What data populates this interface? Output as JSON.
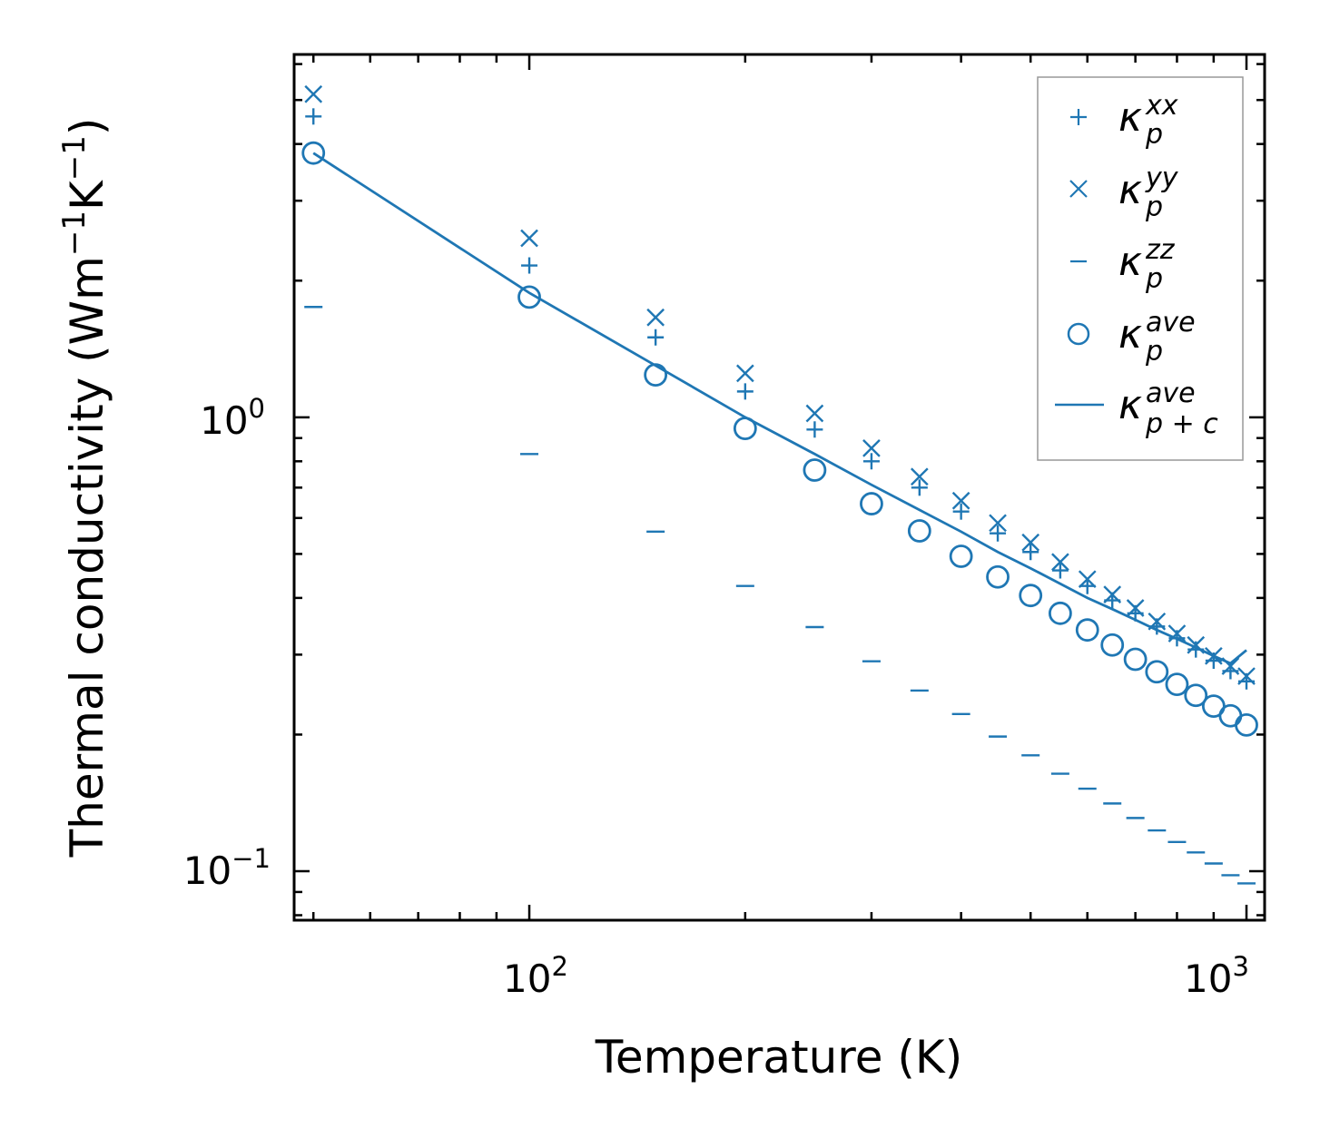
{
  "chart_data": {
    "type": "scatter",
    "x_scale": "log",
    "y_scale": "log",
    "xlabel": "Temperature (K)",
    "ylabel": {
      "prefix": "Thermal conductivity (Wm",
      "exp1": "−1",
      "middle": "K",
      "exp2": "−1",
      "suffix": ")"
    },
    "xlim": [
      47,
      1060
    ],
    "ylim": [
      0.078,
      6.3
    ],
    "x_ticks": [
      {
        "value": 100,
        "base": "10",
        "exp": "2"
      },
      {
        "value": 1000,
        "base": "10",
        "exp": "3"
      }
    ],
    "y_ticks": [
      {
        "value": 1,
        "base": "10",
        "exp": "0"
      },
      {
        "value": 0.1,
        "base": "10",
        "exp": "−1"
      }
    ],
    "x": [
      50,
      100,
      150,
      200,
      250,
      300,
      350,
      400,
      450,
      500,
      550,
      600,
      650,
      700,
      750,
      800,
      850,
      900,
      950,
      1000
    ],
    "series": [
      {
        "name": "kappa_p_xx",
        "marker": "plus",
        "values": [
          4.6,
          2.16,
          1.5,
          1.14,
          0.94,
          0.8,
          0.7,
          0.62,
          0.555,
          0.505,
          0.46,
          0.425,
          0.395,
          0.37,
          0.346,
          0.326,
          0.308,
          0.291,
          0.276,
          0.262
        ]
      },
      {
        "name": "kappa_p_yy",
        "marker": "x",
        "values": [
          5.15,
          2.48,
          1.66,
          1.25,
          1.02,
          0.855,
          0.74,
          0.655,
          0.585,
          0.53,
          0.48,
          0.44,
          0.407,
          0.38,
          0.355,
          0.334,
          0.315,
          0.298,
          0.283,
          0.269
        ]
      },
      {
        "name": "kappa_p_zz",
        "marker": "hline",
        "values": [
          1.75,
          0.83,
          0.56,
          0.425,
          0.345,
          0.29,
          0.25,
          0.222,
          0.198,
          0.18,
          0.164,
          0.152,
          0.141,
          0.131,
          0.123,
          0.116,
          0.11,
          0.104,
          0.098,
          0.094
        ]
      },
      {
        "name": "kappa_p_ave",
        "marker": "circle",
        "values": [
          3.82,
          1.84,
          1.24,
          0.945,
          0.765,
          0.645,
          0.562,
          0.494,
          0.445,
          0.405,
          0.37,
          0.34,
          0.315,
          0.293,
          0.275,
          0.258,
          0.244,
          0.231,
          0.22,
          0.21
        ]
      },
      {
        "name": "kappa_p+c_ave",
        "marker": "line",
        "values": [
          3.82,
          1.88,
          1.3,
          1.0,
          0.83,
          0.71,
          0.625,
          0.56,
          0.505,
          0.465,
          0.43,
          0.4,
          0.378,
          0.358,
          0.34,
          0.325,
          0.311,
          0.298,
          0.287,
          0.307
        ]
      }
    ],
    "legend": {
      "placement": "top-right",
      "entries": [
        {
          "kappa": "κ",
          "sub": "p",
          "sup": "xx"
        },
        {
          "kappa": "κ",
          "sub": "p",
          "sup": "yy"
        },
        {
          "kappa": "κ",
          "sub": "p",
          "sup": "zz"
        },
        {
          "kappa": "κ",
          "sub": "p",
          "sup": "ave"
        },
        {
          "kappa": "κ",
          "sub": "p + c",
          "sup": "ave"
        }
      ]
    },
    "colors": {
      "series": "#1f77b4",
      "axes": "#000000",
      "legend_border": "#999999"
    },
    "grid": false
  }
}
